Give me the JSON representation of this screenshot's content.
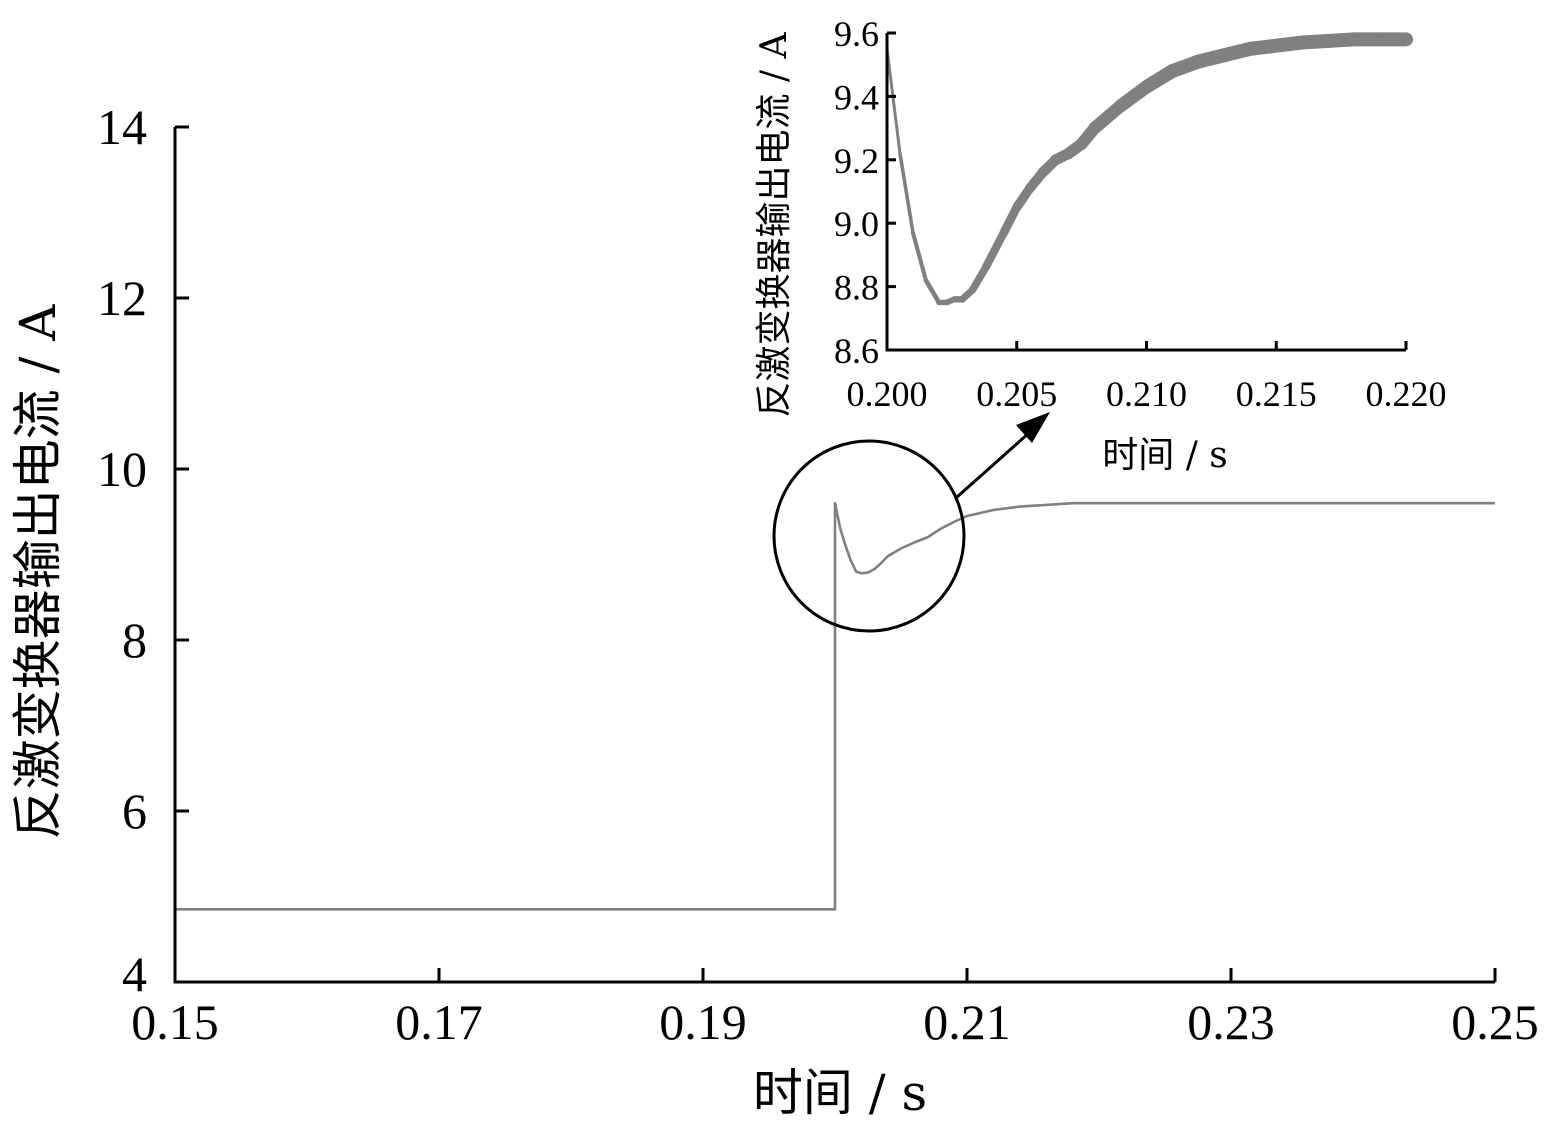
{
  "chart_data": [
    {
      "type": "line",
      "xlabel": "时间 / s",
      "ylabel": "反激变换器输出电流 / A",
      "xlim": [
        0.15,
        0.25
      ],
      "ylim": [
        4,
        14
      ],
      "xticks": [
        "0.15",
        "0.17",
        "0.19",
        "0.21",
        "0.23",
        "0.25"
      ],
      "yticks": [
        "4",
        "6",
        "8",
        "10",
        "12",
        "14"
      ],
      "series_color": "#808080",
      "series": [
        {
          "x": [
            0.15,
            0.2,
            0.2,
            0.2004,
            0.2008,
            0.2012,
            0.2016,
            0.202,
            0.2025,
            0.203,
            0.2035,
            0.204,
            0.205,
            0.206,
            0.207,
            0.208,
            0.209,
            0.21,
            0.212,
            0.214,
            0.216,
            0.218,
            0.22,
            0.225,
            0.25
          ],
          "y": [
            4.85,
            4.85,
            9.6,
            9.3,
            9.1,
            8.93,
            8.8,
            8.78,
            8.79,
            8.83,
            8.9,
            8.98,
            9.07,
            9.14,
            9.2,
            9.3,
            9.38,
            9.45,
            9.52,
            9.56,
            9.58,
            9.6,
            9.6,
            9.6,
            9.6
          ]
        }
      ],
      "annotation": "circle-highlight-with-arrow-to-inset"
    },
    {
      "type": "line",
      "xlabel": "时间 / s",
      "ylabel": "反激变换器输出电流 / A",
      "xlim": [
        0.2,
        0.22
      ],
      "ylim": [
        8.6,
        9.6
      ],
      "xticks": [
        "0.200",
        "0.205",
        "0.210",
        "0.215",
        "0.220"
      ],
      "yticks": [
        "8.6",
        "8.8",
        "9.0",
        "9.2",
        "9.4",
        "9.6"
      ],
      "series_color": "#808080",
      "series": [
        {
          "x": [
            0.2,
            0.2005,
            0.201,
            0.2015,
            0.202,
            0.2023,
            0.2026,
            0.2029,
            0.2033,
            0.2038,
            0.2045,
            0.205,
            0.2055,
            0.206,
            0.2065,
            0.207,
            0.2075,
            0.208,
            0.209,
            0.21,
            0.211,
            0.212,
            0.213,
            0.214,
            0.215,
            0.216,
            0.217,
            0.218,
            0.219,
            0.22
          ],
          "y": [
            9.55,
            9.22,
            8.97,
            8.82,
            8.75,
            8.75,
            8.76,
            8.76,
            8.79,
            8.86,
            8.97,
            9.05,
            9.11,
            9.16,
            9.2,
            9.22,
            9.25,
            9.3,
            9.37,
            9.43,
            9.48,
            9.51,
            9.53,
            9.55,
            9.56,
            9.57,
            9.575,
            9.58,
            9.58,
            9.58
          ]
        }
      ]
    }
  ]
}
